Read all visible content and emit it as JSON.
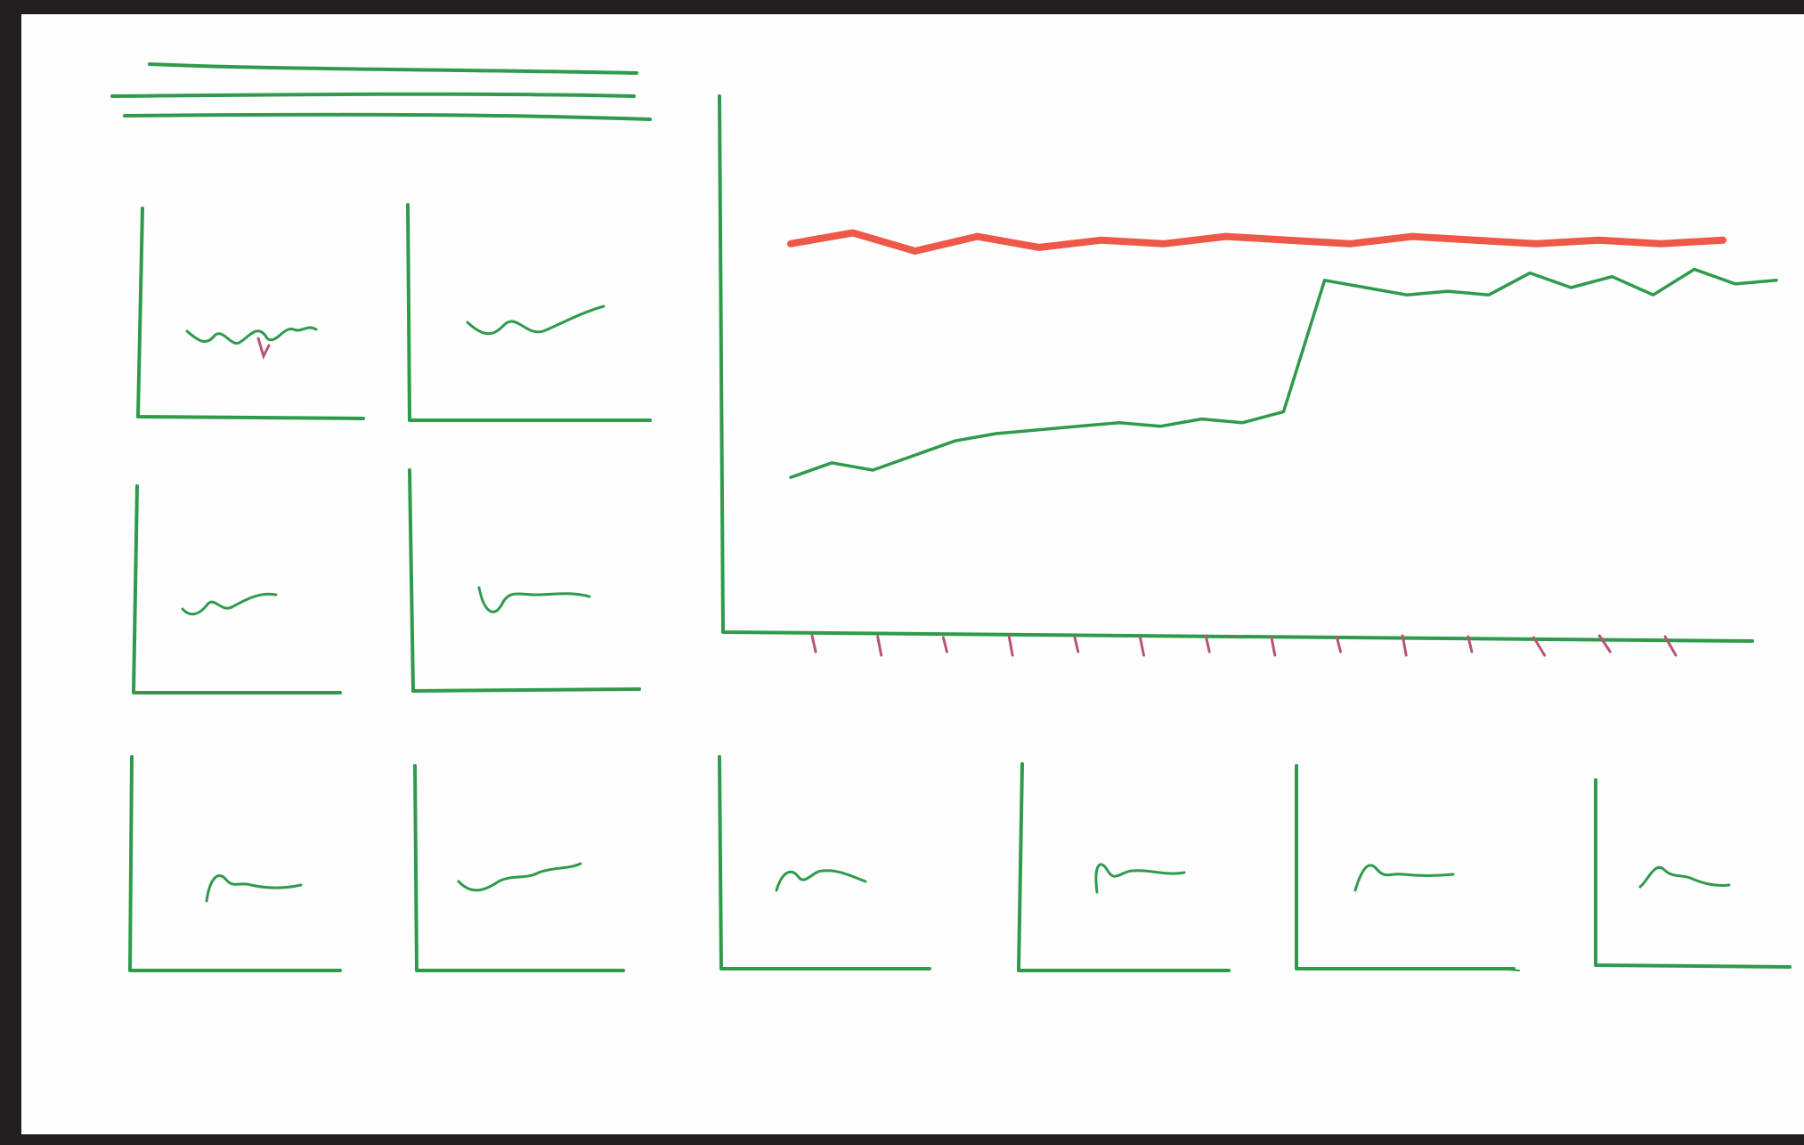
{
  "sketch": {
    "description_visible_text": [],
    "colors": {
      "frame": "#231f20",
      "paper": "#fdfefd",
      "chart_ink": "#2f9a4c",
      "highlight_series": "#ee5848",
      "tick_marks": "#b8537a"
    },
    "title_placeholder_lines": 3,
    "small_multiples_count": 10,
    "main_chart": {
      "series_count": 2,
      "x_tick_count": 14
    }
  },
  "chart_data": {
    "type": "line",
    "title": "",
    "xlabel": "",
    "ylabel": "",
    "series": [
      {
        "values": [
          0.82,
          0.85,
          0.8,
          0.84,
          0.81,
          0.83,
          0.82,
          0.84,
          0.83,
          0.82,
          0.84,
          0.83,
          0.82,
          0.83,
          0.82,
          0.83
        ]
      },
      {
        "values": [
          0.18,
          0.22,
          0.2,
          0.24,
          0.28,
          0.3,
          0.31,
          0.32,
          0.33,
          0.32,
          0.34,
          0.33,
          0.36,
          0.72,
          0.7,
          0.68,
          0.69,
          0.68,
          0.74,
          0.7,
          0.73,
          0.68,
          0.75,
          0.71,
          0.72
        ]
      }
    ]
  }
}
